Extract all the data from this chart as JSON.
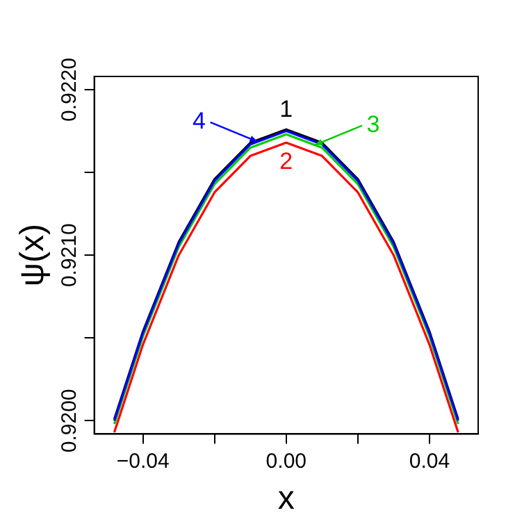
{
  "chart_data": {
    "type": "line",
    "xlabel": "x",
    "ylabel": "ψ(x)",
    "xlim": [
      -0.0536,
      0.0536
    ],
    "ylim": [
      0.91992,
      0.92208
    ],
    "xticks": [
      {
        "value": -0.04,
        "label": "−0.04"
      },
      {
        "value": -0.02,
        "label": null
      },
      {
        "value": 0,
        "label": "0.00"
      },
      {
        "value": 0.02,
        "label": null
      },
      {
        "value": 0.04,
        "label": "0.04"
      }
    ],
    "yticks": [
      {
        "value": 0.92,
        "label": "0.9200"
      },
      {
        "value": 0.9205,
        "label": null
      },
      {
        "value": 0.921,
        "label": "0.9210"
      },
      {
        "value": 0.9215,
        "label": null
      },
      {
        "value": 0.922,
        "label": "0.9220"
      }
    ],
    "x": [
      -0.048,
      -0.04,
      -0.03,
      -0.02,
      -0.01,
      0,
      0.01,
      0.02,
      0.03,
      0.04,
      0.048
    ],
    "series": [
      {
        "color": "#000000",
        "values": [
          0.92001,
          0.92054,
          0.92108,
          0.92146,
          0.92168,
          0.92176,
          0.92168,
          0.92146,
          0.92108,
          0.92054,
          0.92001
        ]
      },
      {
        "color": "#ff0000",
        "values": [
          0.91993,
          0.92046,
          0.921,
          0.92138,
          0.9216,
          0.92168,
          0.9216,
          0.92138,
          0.921,
          0.92046,
          0.91993
        ]
      },
      {
        "color": "#00cd00",
        "values": [
          0.91998,
          0.92051,
          0.92105,
          0.92143,
          0.92165,
          0.92173,
          0.92165,
          0.92143,
          0.92105,
          0.92051,
          0.91998
        ]
      },
      {
        "color": "#0000ff",
        "values": [
          0.92,
          0.92053,
          0.92107,
          0.92145,
          0.92167,
          0.92175,
          0.92167,
          0.92145,
          0.92107,
          0.92053,
          0.92
        ]
      }
    ],
    "annotations": [
      {
        "text": "1",
        "x": 0,
        "y": 0.92176
      },
      {
        "text": "2",
        "x": 0,
        "y": 0.92168
      },
      {
        "text": "3",
        "x": 0.008,
        "y": 0.921666
      },
      {
        "text": "4",
        "x": -0.008,
        "y": 0.921686
      }
    ],
    "grid": false,
    "legend": false,
    "marker": "none",
    "line_style": "solid"
  }
}
